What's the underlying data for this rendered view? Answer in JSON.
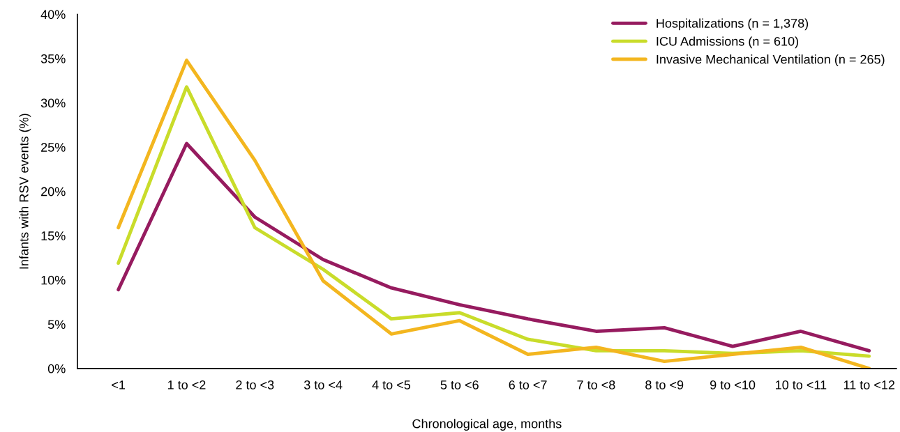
{
  "chart_data": {
    "type": "line",
    "xlabel": "Chronological age, months",
    "ylabel": "Infants with RSV events (%)",
    "categories": [
      "<1",
      "1 to <2",
      "2 to <3",
      "3 to <4",
      "4 to <5",
      "5 to <6",
      "6 to <7",
      "7 to <8",
      "8 to <9",
      "9 to <10",
      "10 to <11",
      "11 to <12"
    ],
    "series": [
      {
        "name": "Hospitalizations (n = 1,378)",
        "color": "#961b5f",
        "values": [
          8.9,
          25.4,
          17.1,
          12.3,
          9.1,
          7.2,
          5.6,
          4.2,
          4.6,
          2.5,
          4.2,
          2.0
        ]
      },
      {
        "name": "ICU Admissions (n = 610)",
        "color": "#c9dc2a",
        "values": [
          11.9,
          31.8,
          15.9,
          11.2,
          5.6,
          6.3,
          3.3,
          2.0,
          2.0,
          1.7,
          2.0,
          1.4
        ]
      },
      {
        "name": "Invasive Mechanical Ventilation (n = 265)",
        "color": "#f3b61f",
        "values": [
          15.9,
          34.8,
          23.5,
          9.9,
          3.9,
          5.4,
          1.6,
          2.4,
          0.8,
          1.6,
          2.4,
          0.0
        ]
      }
    ],
    "ylim": [
      0,
      40
    ],
    "yticks": [
      {
        "value": 0,
        "label": "0%"
      },
      {
        "value": 5,
        "label": "5%"
      },
      {
        "value": 10,
        "label": "10%"
      },
      {
        "value": 15,
        "label": "15%"
      },
      {
        "value": 20,
        "label": "20%"
      },
      {
        "value": 25,
        "label": "25%"
      },
      {
        "value": 30,
        "label": "30%"
      },
      {
        "value": 35,
        "label": "35%"
      },
      {
        "value": 40,
        "label": "40%"
      }
    ],
    "grid": false,
    "legend": "top right",
    "marker": "none",
    "line_style": "solid"
  }
}
